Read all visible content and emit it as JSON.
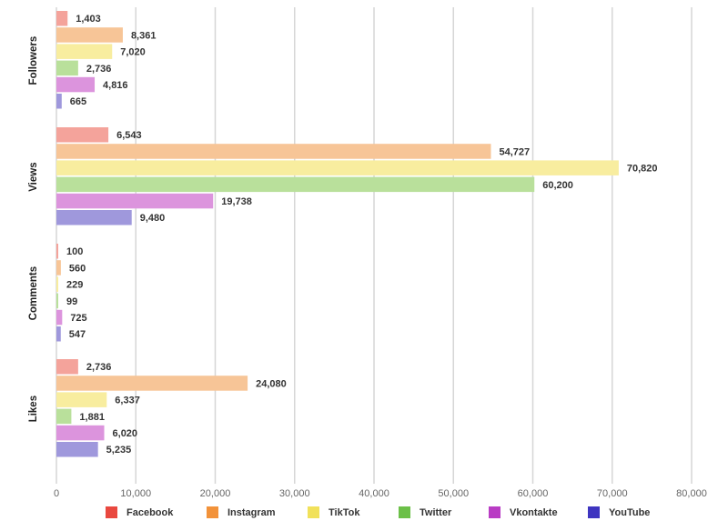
{
  "chart_data": {
    "type": "bar",
    "orientation": "horizontal",
    "title": "",
    "xlabel": "",
    "ylabel": "",
    "categories": [
      "Followers",
      "Views",
      "Comments",
      "Likes"
    ],
    "xlim": [
      0,
      80000
    ],
    "xticks": [
      0,
      10000,
      20000,
      30000,
      40000,
      50000,
      60000,
      70000,
      80000
    ],
    "xtick_labels": [
      "0",
      "10,000",
      "20,000",
      "30,000",
      "40,000",
      "50,000",
      "60,000",
      "70,000",
      "80,000"
    ],
    "grid": true,
    "legend_position": "bottom",
    "series": [
      {
        "name": "Facebook",
        "color": "#f4a39b",
        "legend_color": "#e9483f",
        "values": [
          1403,
          6543,
          100,
          2736
        ],
        "labels": [
          "1,403",
          "6,543",
          "100",
          "2,736"
        ]
      },
      {
        "name": "Instagram",
        "color": "#f7c597",
        "legend_color": "#f2923a",
        "values": [
          8361,
          54727,
          560,
          24080
        ],
        "labels": [
          "8,361",
          "54,727",
          "560",
          "24,080"
        ]
      },
      {
        "name": "TikTok",
        "color": "#f8ed9f",
        "legend_color": "#f1e15a",
        "values": [
          7020,
          70820,
          229,
          6337
        ],
        "labels": [
          "7,020",
          "70,820",
          "229",
          "6,337"
        ]
      },
      {
        "name": "Twitter",
        "color": "#b9e09b",
        "legend_color": "#6cc048",
        "values": [
          2736,
          60200,
          99,
          1881
        ],
        "labels": [
          "2,736",
          "60,200",
          "99",
          "1,881"
        ]
      },
      {
        "name": "Vkontakte",
        "color": "#dc94dd",
        "legend_color": "#b93cc4",
        "values": [
          4816,
          19738,
          725,
          6020
        ],
        "labels": [
          "4,816",
          "19,738",
          "725",
          "6,020"
        ]
      },
      {
        "name": "YouTube",
        "color": "#9f98dc",
        "legend_color": "#3e35c0",
        "values": [
          665,
          9480,
          547,
          5235
        ],
        "labels": [
          "665",
          "9,480",
          "547",
          "5,235"
        ]
      }
    ]
  }
}
